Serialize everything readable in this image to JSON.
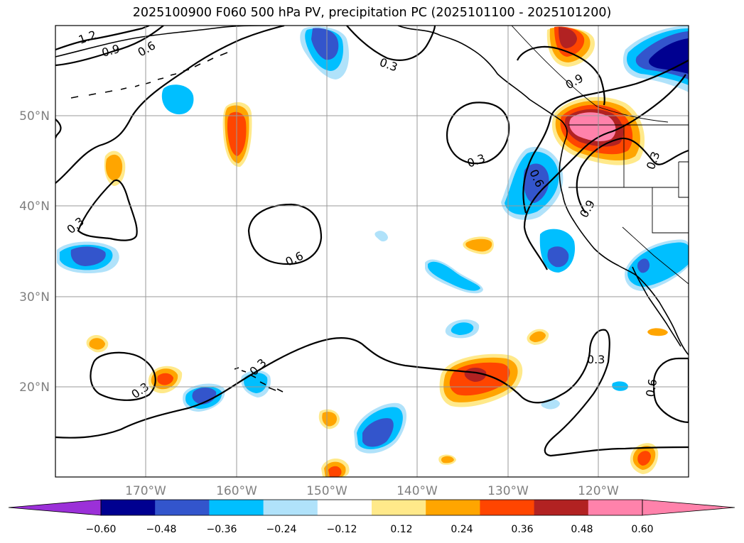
{
  "title": "2025100900 F060 500 hPa PV, precipitation PC (2025101100 - 2025101200)",
  "map": {
    "lon_range": [
      -180,
      -110
    ],
    "lat_range": [
      10,
      60
    ],
    "lon_ticks": [
      {
        "lon": -170,
        "label": "170°W"
      },
      {
        "lon": -160,
        "label": "160°W"
      },
      {
        "lon": -150,
        "label": "150°W"
      },
      {
        "lon": -140,
        "label": "140°W"
      },
      {
        "lon": -130,
        "label": "130°W"
      },
      {
        "lon": -120,
        "label": "120°W"
      }
    ],
    "lat_ticks": [
      {
        "lat": 50,
        "label": "50°N"
      },
      {
        "lat": 40,
        "label": "40°N"
      },
      {
        "lat": 30,
        "label": "30°N"
      },
      {
        "lat": 20,
        "label": "20°N"
      }
    ],
    "contour_labels": [
      "1.2",
      "0.9",
      "0.6",
      "0.3",
      "0.3",
      "0.6",
      "0.3",
      "0.3",
      "0.3",
      "0.6",
      "0.9",
      "0.9",
      "0.3",
      "0.3",
      "0.6"
    ]
  },
  "colorbar": {
    "ticks": [
      "−0.60",
      "−0.48",
      "−0.36",
      "−0.24",
      "−0.12",
      "0.12",
      "0.24",
      "0.36",
      "0.48",
      "0.60"
    ],
    "colors": [
      "#9b30d8",
      "#000090",
      "#3355cc",
      "#00bfff",
      "#b0e2fa",
      "#ffffff",
      "#ffe98a",
      "#ffa500",
      "#ff4500",
      "#b22222",
      "#ff82ab",
      "#ff82ab"
    ]
  },
  "colors": {
    "neg1": "#00bfff",
    "neg2": "#3355cc",
    "neg3": "#000090",
    "negl": "#b0e2fa",
    "pos0": "#ffe98a",
    "pos1": "#ffa500",
    "pos2": "#ff4500",
    "pos3": "#b22222",
    "pos4": "#ff82ab"
  }
}
